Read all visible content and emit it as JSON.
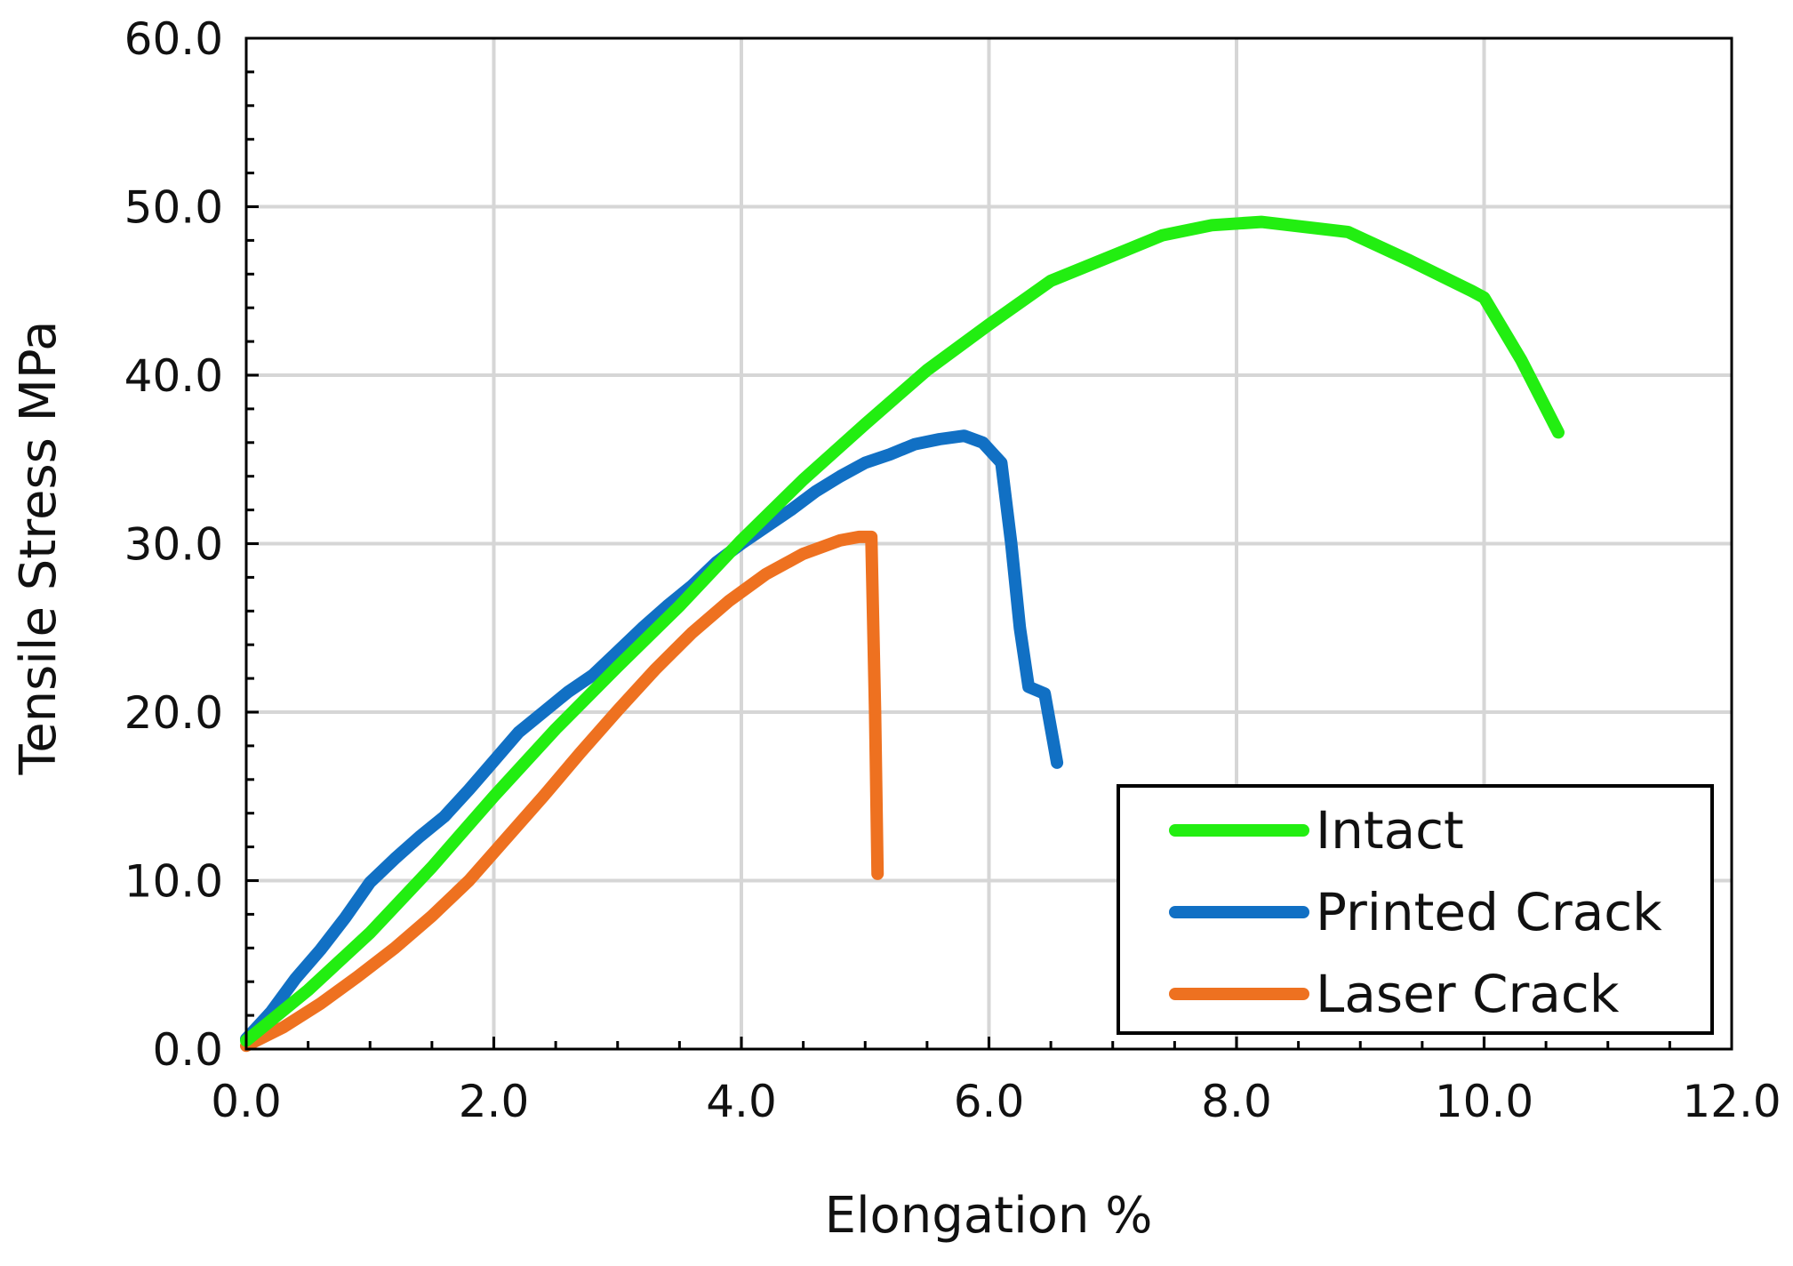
{
  "chart_data": {
    "type": "line",
    "title": "",
    "xlabel": "Elongation %",
    "ylabel": "Tensile Stress MPa",
    "xlim": [
      0,
      12
    ],
    "ylim": [
      0,
      60
    ],
    "xticks": [
      0,
      2,
      4,
      6,
      8,
      10,
      12
    ],
    "yticks": [
      0,
      10,
      20,
      30,
      40,
      50,
      60
    ],
    "xtick_labels": [
      "0.0",
      "2.0",
      "4.0",
      "6.0",
      "8.0",
      "10.0",
      "12.0"
    ],
    "ytick_labels": [
      "0.0",
      "10.0",
      "20.0",
      "30.0",
      "40.0",
      "50.0",
      "60.0"
    ],
    "grid": true,
    "legend_position": "bottom-right",
    "series": [
      {
        "name": "Intact",
        "color": "#22ee11",
        "x": [
          0.0,
          0.2,
          0.5,
          1.0,
          1.5,
          2.0,
          2.5,
          3.0,
          3.5,
          4.0,
          4.5,
          5.0,
          5.5,
          6.0,
          6.5,
          7.0,
          7.4,
          7.8,
          8.2,
          8.9,
          9.4,
          9.9,
          10.0,
          10.3,
          10.6
        ],
        "y": [
          0.5,
          1.7,
          3.5,
          6.9,
          10.8,
          15.0,
          19.0,
          22.7,
          26.3,
          30.2,
          33.8,
          37.1,
          40.3,
          43.0,
          45.6,
          47.1,
          48.3,
          48.9,
          49.1,
          48.5,
          46.8,
          45.0,
          44.6,
          40.9,
          36.6
        ]
      },
      {
        "name": "Printed Crack",
        "color": "#1170c4",
        "x": [
          0.0,
          0.2,
          0.4,
          0.6,
          0.8,
          1.0,
          1.2,
          1.4,
          1.6,
          1.8,
          2.0,
          2.2,
          2.4,
          2.6,
          2.8,
          3.0,
          3.2,
          3.4,
          3.6,
          3.8,
          4.0,
          4.2,
          4.4,
          4.6,
          4.8,
          5.0,
          5.2,
          5.4,
          5.6,
          5.8,
          5.95,
          6.1,
          6.18,
          6.25,
          6.32,
          6.45,
          6.55
        ],
        "y": [
          0.6,
          2.2,
          4.2,
          5.9,
          7.8,
          9.9,
          11.3,
          12.6,
          13.8,
          15.4,
          17.1,
          18.8,
          20.0,
          21.2,
          22.2,
          23.6,
          25.0,
          26.3,
          27.5,
          28.9,
          30.0,
          31.0,
          32.0,
          33.1,
          34.0,
          34.8,
          35.3,
          35.9,
          36.2,
          36.4,
          36.0,
          34.8,
          30.0,
          25.0,
          21.5,
          21.1,
          17.0
        ]
      },
      {
        "name": "Laser Crack",
        "color": "#ee7120",
        "x": [
          0.0,
          0.3,
          0.6,
          0.9,
          1.2,
          1.5,
          1.8,
          2.1,
          2.4,
          2.7,
          3.0,
          3.3,
          3.6,
          3.9,
          4.2,
          4.5,
          4.8,
          4.95,
          5.05,
          5.08,
          5.1
        ],
        "y": [
          0.2,
          1.3,
          2.7,
          4.3,
          6.0,
          7.9,
          10.0,
          12.5,
          15.0,
          17.6,
          20.1,
          22.5,
          24.7,
          26.6,
          28.2,
          29.4,
          30.2,
          30.4,
          30.4,
          20.0,
          10.4
        ]
      }
    ]
  }
}
